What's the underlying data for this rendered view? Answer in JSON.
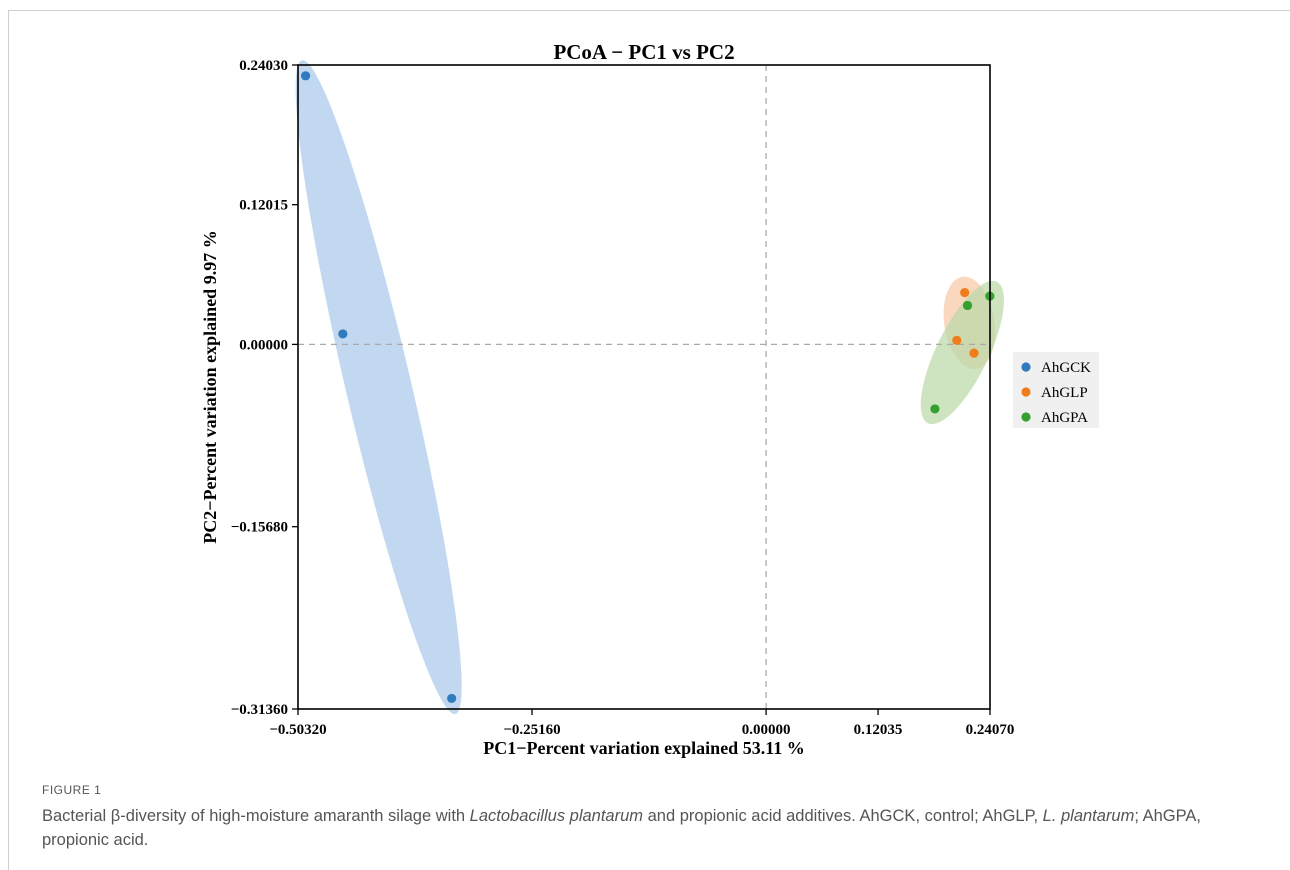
{
  "chart_data": {
    "type": "scatter",
    "title": "PCoA − PC1 vs PC2",
    "xlabel": "PC1−Percent variation explained 53.11 %",
    "ylabel": "PC2−Percent variation explained 9.97 %",
    "xlim": [
      -0.5032,
      0.2407
    ],
    "ylim": [
      -0.3136,
      0.2403
    ],
    "x_ticks": [
      -0.5032,
      -0.2516,
      0.0,
      0.12035,
      0.2407
    ],
    "x_tick_labels": [
      "−0.50320",
      "−0.25160",
      "0.00000",
      "0.12035",
      "0.24070"
    ],
    "y_ticks": [
      0.2403,
      0.12015,
      0.0,
      -0.1568,
      -0.3136
    ],
    "y_tick_labels": [
      "0.24030",
      "0.12015",
      "0.00000",
      "−0.15680",
      "−0.31360"
    ],
    "reference_lines": {
      "x": 0,
      "y": 0
    },
    "legend_position": "right",
    "series": [
      {
        "name": "AhGCK",
        "color": "#2f7bbd",
        "ellipse_color": "#a8c8ea",
        "points": [
          {
            "x": -0.495,
            "y": 0.231
          },
          {
            "x": -0.455,
            "y": 0.009
          },
          {
            "x": -0.338,
            "y": -0.3045
          }
        ]
      },
      {
        "name": "AhGLP",
        "color": "#f07d1a",
        "ellipse_color": "#f6c7a4",
        "points": [
          {
            "x": 0.2135,
            "y": 0.0445
          },
          {
            "x": 0.205,
            "y": 0.0035
          },
          {
            "x": 0.2235,
            "y": -0.0075
          }
        ]
      },
      {
        "name": "AhGPA",
        "color": "#35a02e",
        "ellipse_color": "#b9d9a5",
        "points": [
          {
            "x": 0.2405,
            "y": 0.0415
          },
          {
            "x": 0.2165,
            "y": 0.0335
          },
          {
            "x": 0.1815,
            "y": -0.0555
          }
        ]
      }
    ]
  },
  "caption": {
    "label": "FIGURE 1",
    "text_parts": [
      "Bacterial β-diversity of high-moisture amaranth silage with ",
      "Lactobacillus plantarum",
      " and propionic acid additives. AhGCK, control; AhGLP, ",
      "L. plantarum",
      "; AhGPA, propionic acid."
    ]
  }
}
